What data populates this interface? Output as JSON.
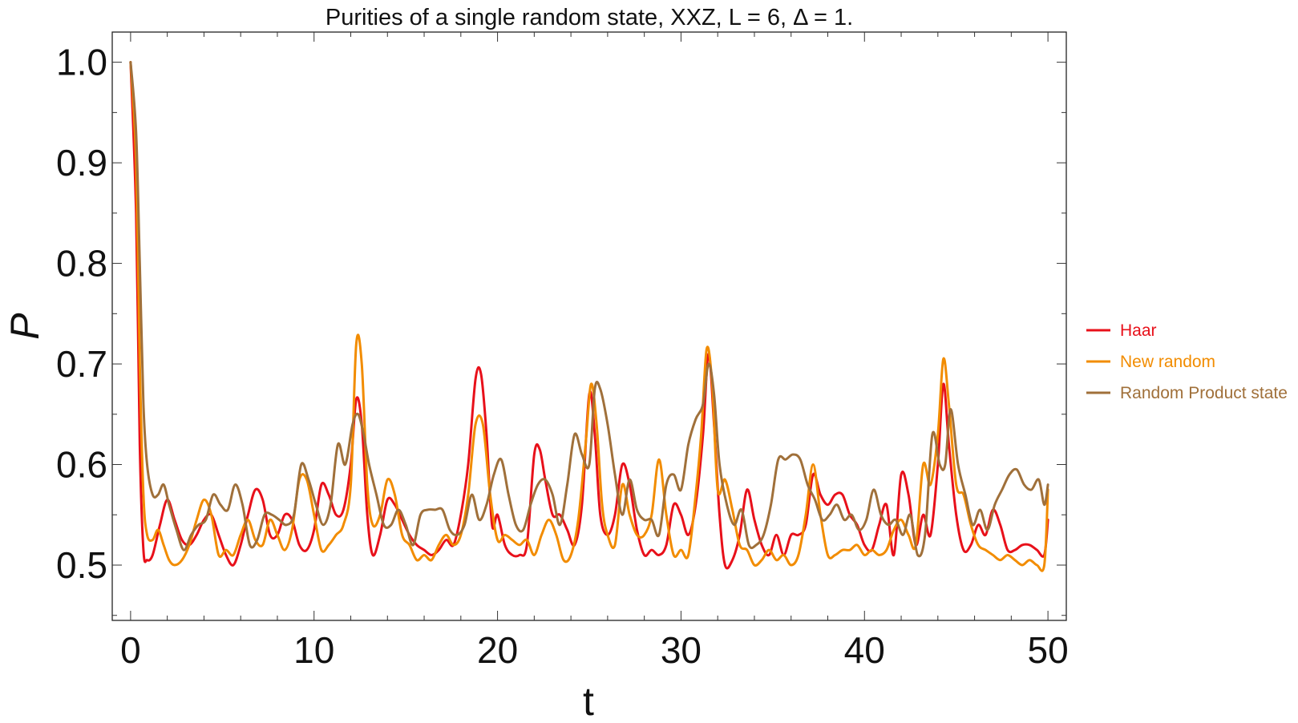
{
  "chart_data": {
    "type": "line",
    "title": "Purities of a single random state, XXZ, L = 6, Δ = 1.",
    "xlabel": "t",
    "ylabel": "P",
    "xlim": [
      -1,
      51
    ],
    "ylim": [
      0.445,
      1.03
    ],
    "xticks": [
      0,
      10,
      20,
      30,
      40,
      50
    ],
    "xtick_labels": [
      "0",
      "10",
      "20",
      "30",
      "40",
      "50"
    ],
    "yticks": [
      0.5,
      0.6,
      0.7,
      0.8,
      0.9,
      1.0
    ],
    "ytick_labels": [
      "0.5",
      "0.6",
      "0.7",
      "0.8",
      "0.9",
      "1.0"
    ],
    "grid": false,
    "legend_position": "right",
    "series": [
      {
        "name": "Haar",
        "color": "#e8101a",
        "x": [
          0,
          0.3,
          0.5,
          0.7,
          0.9,
          1.2,
          1.6,
          2.0,
          2.4,
          2.8,
          3.2,
          3.6,
          4.0,
          4.4,
          4.8,
          5.2,
          5.6,
          6.0,
          6.4,
          6.8,
          7.2,
          7.6,
          8.0,
          8.4,
          8.8,
          9.2,
          9.6,
          10.0,
          10.4,
          10.8,
          11.2,
          11.6,
          12.0,
          12.3,
          12.6,
          12.9,
          13.2,
          13.6,
          14.0,
          14.4,
          14.8,
          15.2,
          15.6,
          16.0,
          16.4,
          16.8,
          17.2,
          17.6,
          18.0,
          18.4,
          18.8,
          19.1,
          19.4,
          19.7,
          20.0,
          20.4,
          20.8,
          21.2,
          21.6,
          22.0,
          22.3,
          22.6,
          23.0,
          23.4,
          23.8,
          24.2,
          24.6,
          25.0,
          25.3,
          25.6,
          26.0,
          26.4,
          26.8,
          27.2,
          27.6,
          28.0,
          28.4,
          28.8,
          29.2,
          29.6,
          30.0,
          30.4,
          30.8,
          31.2,
          31.5,
          31.8,
          32.1,
          32.4,
          32.8,
          33.2,
          33.6,
          34.0,
          34.4,
          34.8,
          35.2,
          35.6,
          36.0,
          36.4,
          36.8,
          37.2,
          37.6,
          38.0,
          38.4,
          38.8,
          39.2,
          39.6,
          40.0,
          40.4,
          40.8,
          41.2,
          41.6,
          42.0,
          42.4,
          42.8,
          43.2,
          43.6,
          44.0,
          44.3,
          44.6,
          45.0,
          45.4,
          45.8,
          46.2,
          46.6,
          47.0,
          47.4,
          47.8,
          48.2,
          48.6,
          49.0,
          49.4,
          49.8,
          50.0
        ],
        "y": [
          1.0,
          0.85,
          0.62,
          0.515,
          0.505,
          0.51,
          0.54,
          0.565,
          0.545,
          0.525,
          0.52,
          0.53,
          0.545,
          0.55,
          0.53,
          0.51,
          0.5,
          0.52,
          0.55,
          0.575,
          0.565,
          0.53,
          0.53,
          0.55,
          0.545,
          0.52,
          0.515,
          0.535,
          0.58,
          0.57,
          0.55,
          0.555,
          0.6,
          0.665,
          0.64,
          0.55,
          0.51,
          0.53,
          0.565,
          0.56,
          0.545,
          0.53,
          0.52,
          0.515,
          0.51,
          0.515,
          0.525,
          0.52,
          0.55,
          0.6,
          0.685,
          0.69,
          0.63,
          0.54,
          0.55,
          0.52,
          0.51,
          0.51,
          0.52,
          0.61,
          0.615,
          0.585,
          0.55,
          0.55,
          0.535,
          0.52,
          0.56,
          0.67,
          0.63,
          0.55,
          0.53,
          0.55,
          0.6,
          0.58,
          0.535,
          0.51,
          0.515,
          0.51,
          0.52,
          0.56,
          0.55,
          0.53,
          0.56,
          0.63,
          0.71,
          0.64,
          0.55,
          0.5,
          0.505,
          0.53,
          0.575,
          0.545,
          0.52,
          0.51,
          0.53,
          0.51,
          0.53,
          0.53,
          0.54,
          0.59,
          0.57,
          0.56,
          0.57,
          0.57,
          0.55,
          0.54,
          0.52,
          0.515,
          0.54,
          0.56,
          0.51,
          0.59,
          0.57,
          0.52,
          0.55,
          0.53,
          0.6,
          0.68,
          0.62,
          0.55,
          0.515,
          0.52,
          0.54,
          0.53,
          0.555,
          0.54,
          0.515,
          0.515,
          0.52,
          0.52,
          0.515,
          0.51,
          0.545
        ]
      },
      {
        "name": "New random",
        "color": "#f28c00",
        "x": [
          0,
          0.3,
          0.5,
          0.7,
          0.9,
          1.2,
          1.5,
          1.8,
          2.1,
          2.4,
          2.8,
          3.2,
          3.6,
          4.0,
          4.4,
          4.8,
          5.2,
          5.6,
          6.0,
          6.4,
          6.8,
          7.2,
          7.6,
          8.0,
          8.4,
          8.8,
          9.2,
          9.6,
          10.0,
          10.4,
          10.8,
          11.2,
          11.6,
          12.0,
          12.3,
          12.6,
          12.9,
          13.2,
          13.6,
          14.0,
          14.4,
          14.8,
          15.2,
          15.6,
          16.0,
          16.4,
          16.8,
          17.2,
          17.6,
          18.0,
          18.4,
          18.8,
          19.2,
          19.6,
          20.0,
          20.4,
          20.8,
          21.2,
          21.6,
          22.0,
          22.4,
          22.8,
          23.2,
          23.6,
          24.0,
          24.4,
          24.8,
          25.1,
          25.4,
          25.7,
          26.0,
          26.4,
          26.8,
          27.2,
          27.6,
          28.0,
          28.4,
          28.8,
          29.2,
          29.6,
          30.0,
          30.4,
          30.8,
          31.1,
          31.4,
          31.7,
          32.0,
          32.4,
          32.8,
          33.2,
          33.6,
          34.0,
          34.4,
          34.8,
          35.2,
          35.6,
          36.0,
          36.4,
          36.8,
          37.2,
          37.6,
          38.0,
          38.4,
          38.8,
          39.2,
          39.6,
          40.0,
          40.4,
          40.8,
          41.2,
          41.6,
          42.0,
          42.4,
          42.8,
          43.2,
          43.6,
          44.0,
          44.3,
          44.6,
          45.0,
          45.4,
          45.8,
          46.2,
          46.6,
          47.0,
          47.4,
          47.8,
          48.2,
          48.6,
          49.0,
          49.4,
          49.8,
          50.0
        ],
        "y": [
          1.0,
          0.9,
          0.7,
          0.57,
          0.53,
          0.525,
          0.535,
          0.52,
          0.505,
          0.5,
          0.505,
          0.52,
          0.545,
          0.565,
          0.55,
          0.51,
          0.515,
          0.51,
          0.53,
          0.545,
          0.525,
          0.52,
          0.545,
          0.53,
          0.515,
          0.535,
          0.585,
          0.585,
          0.55,
          0.515,
          0.52,
          0.53,
          0.54,
          0.58,
          0.72,
          0.7,
          0.58,
          0.54,
          0.55,
          0.585,
          0.57,
          0.53,
          0.52,
          0.505,
          0.51,
          0.505,
          0.52,
          0.53,
          0.52,
          0.53,
          0.57,
          0.64,
          0.64,
          0.57,
          0.525,
          0.53,
          0.525,
          0.52,
          0.525,
          0.51,
          0.53,
          0.545,
          0.53,
          0.505,
          0.51,
          0.545,
          0.62,
          0.68,
          0.64,
          0.56,
          0.53,
          0.52,
          0.58,
          0.55,
          0.53,
          0.53,
          0.55,
          0.605,
          0.55,
          0.51,
          0.515,
          0.51,
          0.57,
          0.63,
          0.715,
          0.68,
          0.575,
          0.585,
          0.555,
          0.52,
          0.515,
          0.5,
          0.505,
          0.515,
          0.505,
          0.51,
          0.5,
          0.51,
          0.55,
          0.6,
          0.55,
          0.51,
          0.51,
          0.515,
          0.515,
          0.52,
          0.51,
          0.515,
          0.51,
          0.515,
          0.535,
          0.545,
          0.53,
          0.52,
          0.6,
          0.58,
          0.63,
          0.705,
          0.66,
          0.58,
          0.57,
          0.54,
          0.52,
          0.515,
          0.51,
          0.505,
          0.51,
          0.505,
          0.5,
          0.505,
          0.5,
          0.5,
          0.575
        ]
      },
      {
        "name": "Random Product state",
        "color": "#a0703a",
        "x": [
          0,
          0.3,
          0.5,
          0.7,
          0.9,
          1.2,
          1.5,
          1.8,
          2.1,
          2.5,
          2.9,
          3.3,
          3.7,
          4.1,
          4.5,
          4.9,
          5.3,
          5.7,
          6.1,
          6.5,
          6.9,
          7.3,
          7.7,
          8.1,
          8.5,
          8.9,
          9.3,
          9.7,
          10.1,
          10.5,
          10.9,
          11.3,
          11.7,
          12.1,
          12.4,
          12.7,
          13.0,
          13.4,
          13.8,
          14.2,
          14.6,
          15.0,
          15.4,
          15.8,
          16.2,
          16.6,
          17.0,
          17.4,
          17.8,
          18.2,
          18.6,
          19.0,
          19.4,
          19.8,
          20.2,
          20.6,
          21.0,
          21.4,
          21.8,
          22.2,
          22.6,
          23.0,
          23.4,
          23.8,
          24.2,
          24.6,
          25.0,
          25.3,
          25.6,
          26.0,
          26.4,
          26.8,
          27.2,
          27.6,
          28.0,
          28.4,
          28.8,
          29.2,
          29.6,
          30.0,
          30.4,
          30.8,
          31.2,
          31.5,
          31.8,
          32.1,
          32.5,
          32.9,
          33.3,
          33.7,
          34.1,
          34.5,
          34.9,
          35.3,
          35.7,
          36.1,
          36.5,
          36.9,
          37.3,
          37.7,
          38.1,
          38.5,
          38.9,
          39.3,
          39.7,
          40.1,
          40.5,
          40.9,
          41.3,
          41.7,
          42.1,
          42.5,
          42.9,
          43.3,
          43.7,
          44.1,
          44.4,
          44.7,
          45.1,
          45.5,
          45.9,
          46.3,
          46.7,
          47.1,
          47.5,
          47.9,
          48.3,
          48.7,
          49.1,
          49.5,
          49.8,
          50.0
        ],
        "y": [
          1.0,
          0.93,
          0.8,
          0.66,
          0.6,
          0.57,
          0.57,
          0.58,
          0.56,
          0.535,
          0.515,
          0.53,
          0.54,
          0.545,
          0.57,
          0.56,
          0.555,
          0.58,
          0.56,
          0.52,
          0.525,
          0.55,
          0.55,
          0.545,
          0.54,
          0.55,
          0.6,
          0.585,
          0.56,
          0.54,
          0.56,
          0.62,
          0.6,
          0.64,
          0.65,
          0.63,
          0.6,
          0.57,
          0.54,
          0.54,
          0.555,
          0.54,
          0.52,
          0.55,
          0.555,
          0.555,
          0.555,
          0.535,
          0.53,
          0.54,
          0.57,
          0.545,
          0.56,
          0.59,
          0.605,
          0.57,
          0.54,
          0.535,
          0.56,
          0.58,
          0.585,
          0.57,
          0.54,
          0.58,
          0.63,
          0.61,
          0.6,
          0.675,
          0.675,
          0.64,
          0.59,
          0.55,
          0.585,
          0.555,
          0.545,
          0.545,
          0.53,
          0.58,
          0.59,
          0.575,
          0.62,
          0.645,
          0.66,
          0.7,
          0.67,
          0.6,
          0.56,
          0.54,
          0.555,
          0.52,
          0.52,
          0.53,
          0.56,
          0.605,
          0.605,
          0.61,
          0.605,
          0.58,
          0.565,
          0.545,
          0.55,
          0.56,
          0.545,
          0.55,
          0.535,
          0.545,
          0.575,
          0.55,
          0.54,
          0.545,
          0.53,
          0.55,
          0.51,
          0.53,
          0.63,
          0.6,
          0.6,
          0.655,
          0.6,
          0.57,
          0.54,
          0.555,
          0.535,
          0.56,
          0.575,
          0.59,
          0.595,
          0.58,
          0.575,
          0.585,
          0.56,
          0.58
        ]
      }
    ]
  }
}
